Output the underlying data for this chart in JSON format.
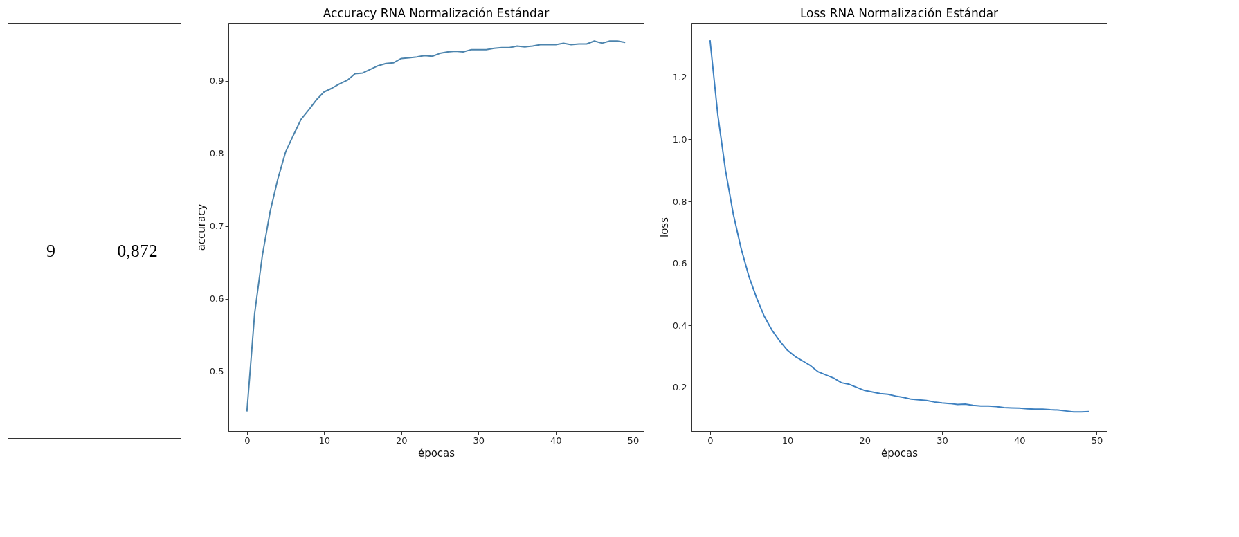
{
  "chart_data": [
    {
      "type": "other",
      "annotations": [
        "9",
        "0,872"
      ]
    },
    {
      "type": "line",
      "title": "Accuracy RNA Normalización Estándar",
      "xlabel": "épocas",
      "ylabel": "accuracy",
      "x": [
        0,
        1,
        2,
        3,
        4,
        5,
        6,
        7,
        8,
        9,
        10,
        11,
        12,
        13,
        14,
        15,
        16,
        17,
        18,
        19,
        20,
        21,
        22,
        23,
        24,
        25,
        26,
        27,
        28,
        29,
        30,
        31,
        32,
        33,
        34,
        35,
        36,
        37,
        38,
        39,
        40,
        41,
        42,
        43,
        44,
        45,
        46,
        47,
        48,
        49
      ],
      "series": [
        {
          "color": "#4c84ad",
          "values": [
            0.445,
            0.58,
            0.66,
            0.72,
            0.765,
            0.802,
            0.825,
            0.847,
            0.86,
            0.874,
            0.885,
            0.89,
            0.896,
            0.901,
            0.91,
            0.911,
            0.916,
            0.921,
            0.924,
            0.925,
            0.931,
            0.932,
            0.933,
            0.935,
            0.934,
            0.938,
            0.94,
            0.941,
            0.94,
            0.943,
            0.943,
            0.943,
            0.945,
            0.946,
            0.946,
            0.948,
            0.947,
            0.948,
            0.95,
            0.95,
            0.95,
            0.952,
            0.95,
            0.951,
            0.951,
            0.955,
            0.952,
            0.955,
            0.955,
            0.953
          ]
        }
      ],
      "xlim": [
        -2.4,
        51.4
      ],
      "ylim": [
        0.418,
        0.98
      ],
      "xticks": [
        0,
        10,
        20,
        30,
        40,
        50
      ],
      "yticks": [
        0.5,
        0.6,
        0.7,
        0.8,
        0.9
      ]
    },
    {
      "type": "line",
      "title": "Loss RNA Normalización Estándar",
      "xlabel": "épocas",
      "ylabel": "loss",
      "x": [
        0,
        1,
        2,
        3,
        4,
        5,
        6,
        7,
        8,
        9,
        10,
        11,
        12,
        13,
        14,
        15,
        16,
        17,
        18,
        19,
        20,
        21,
        22,
        23,
        24,
        25,
        26,
        27,
        28,
        29,
        30,
        31,
        32,
        33,
        34,
        35,
        36,
        37,
        38,
        39,
        40,
        41,
        42,
        43,
        44,
        45,
        46,
        47,
        48,
        49
      ],
      "series": [
        {
          "color": "#3d80c0",
          "values": [
            1.32,
            1.08,
            0.9,
            0.76,
            0.65,
            0.56,
            0.49,
            0.43,
            0.385,
            0.35,
            0.32,
            0.3,
            0.285,
            0.27,
            0.25,
            0.24,
            0.23,
            0.215,
            0.21,
            0.2,
            0.19,
            0.185,
            0.18,
            0.178,
            0.172,
            0.168,
            0.162,
            0.16,
            0.158,
            0.153,
            0.15,
            0.148,
            0.145,
            0.146,
            0.142,
            0.14,
            0.14,
            0.138,
            0.135,
            0.134,
            0.133,
            0.131,
            0.13,
            0.13,
            0.128,
            0.127,
            0.124,
            0.121,
            0.121,
            0.122
          ]
        }
      ],
      "xlim": [
        -2.4,
        51.3
      ],
      "ylim": [
        0.059,
        1.376
      ],
      "xticks": [
        0,
        10,
        20,
        30,
        40,
        50
      ],
      "yticks": [
        0.2,
        0.4,
        0.6,
        0.8,
        {
          "value": 1.0,
          "label": "1.0"
        },
        1.2
      ]
    }
  ]
}
